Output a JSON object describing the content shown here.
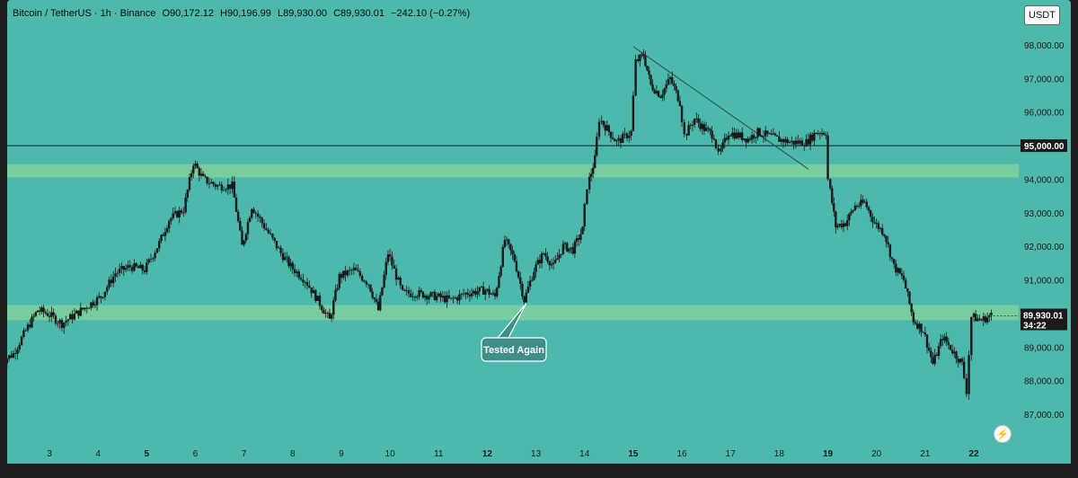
{
  "header": {
    "symbol": "Bitcoin / TetherUS · 1h · Binance",
    "open": "O90,172.12",
    "high": "H90,196.99",
    "low": "L89,930.00",
    "close": "C89,930.01",
    "change": "−242.10 (−0.27%)"
  },
  "currency_button": "USDT",
  "annotation": {
    "text": "Tested Again"
  },
  "price_label": {
    "price": "89,930.01",
    "countdown": "34:22"
  },
  "level_label": "95,000.00",
  "colors": {
    "background": "#4db8ac",
    "candle": "#1a1a1a",
    "zone": "#7fd09a",
    "line": "#1a1a1a"
  },
  "chart_data": {
    "type": "candlestick",
    "ylim": [
      86500,
      98500
    ],
    "y_ticks": [
      "98,000.00",
      "97,000.00",
      "96,000.00",
      "95,000.00",
      "94,000.00",
      "93,000.00",
      "92,000.00",
      "91,000.00",
      "90,000.00",
      "89,000.00",
      "88,000.00",
      "87,000.00"
    ],
    "x_ticks": [
      "3",
      "4",
      "5",
      "6",
      "7",
      "8",
      "9",
      "10",
      "11",
      "12",
      "13",
      "14",
      "15",
      "16",
      "17",
      "18",
      "19",
      "20",
      "21",
      "22"
    ],
    "x_bold": [
      "5",
      "12",
      "15",
      "19",
      "22"
    ],
    "horizontal_line": 95000,
    "support_zones": [
      [
        94050,
        94450
      ],
      [
        89800,
        90250
      ]
    ],
    "trendline": [
      [
        15.0,
        97950
      ],
      [
        18.6,
        94300
      ]
    ],
    "price_path": [
      [
        2.0,
        88500
      ],
      [
        2.3,
        88800
      ],
      [
        2.6,
        89600
      ],
      [
        2.8,
        90100
      ],
      [
        3.0,
        90000
      ],
      [
        3.3,
        89700
      ],
      [
        3.6,
        90000
      ],
      [
        3.9,
        90300
      ],
      [
        4.1,
        90500
      ],
      [
        4.4,
        91200
      ],
      [
        4.7,
        91400
      ],
      [
        5.0,
        91300
      ],
      [
        5.3,
        92100
      ],
      [
        5.5,
        92800
      ],
      [
        5.8,
        93100
      ],
      [
        6.0,
        94500
      ],
      [
        6.2,
        94000
      ],
      [
        6.5,
        93800
      ],
      [
        6.8,
        93800
      ],
      [
        7.0,
        92000
      ],
      [
        7.2,
        93200
      ],
      [
        7.5,
        92500
      ],
      [
        7.8,
        91800
      ],
      [
        8.0,
        91400
      ],
      [
        8.3,
        91000
      ],
      [
        8.6,
        90300
      ],
      [
        8.8,
        89800
      ],
      [
        9.0,
        91100
      ],
      [
        9.3,
        91300
      ],
      [
        9.6,
        90900
      ],
      [
        9.8,
        90100
      ],
      [
        10.0,
        91800
      ],
      [
        10.3,
        90600
      ],
      [
        10.6,
        90600
      ],
      [
        11.0,
        90500
      ],
      [
        11.3,
        90400
      ],
      [
        11.6,
        90600
      ],
      [
        12.0,
        90700
      ],
      [
        12.2,
        90500
      ],
      [
        12.4,
        92200
      ],
      [
        12.6,
        91600
      ],
      [
        12.8,
        90400
      ],
      [
        13.0,
        91300
      ],
      [
        13.2,
        91800
      ],
      [
        13.4,
        91400
      ],
      [
        13.6,
        92000
      ],
      [
        13.8,
        91900
      ],
      [
        14.0,
        92500
      ],
      [
        14.1,
        93800
      ],
      [
        14.25,
        94600
      ],
      [
        14.35,
        95800
      ],
      [
        14.5,
        95500
      ],
      [
        14.7,
        95100
      ],
      [
        15.0,
        95400
      ],
      [
        15.1,
        97500
      ],
      [
        15.25,
        97700
      ],
      [
        15.4,
        96800
      ],
      [
        15.6,
        96500
      ],
      [
        15.8,
        97000
      ],
      [
        16.0,
        96300
      ],
      [
        16.1,
        95300
      ],
      [
        16.3,
        95800
      ],
      [
        16.5,
        95500
      ],
      [
        16.7,
        95300
      ],
      [
        16.8,
        94700
      ],
      [
        17.0,
        95400
      ],
      [
        17.2,
        95300
      ],
      [
        17.4,
        95200
      ],
      [
        17.6,
        95400
      ],
      [
        17.8,
        95300
      ],
      [
        18.0,
        95200
      ],
      [
        18.3,
        95100
      ],
      [
        18.6,
        95100
      ],
      [
        18.8,
        95400
      ],
      [
        19.0,
        95400
      ],
      [
        19.05,
        94000
      ],
      [
        19.2,
        92600
      ],
      [
        19.4,
        92700
      ],
      [
        19.6,
        93200
      ],
      [
        19.8,
        93300
      ],
      [
        20.0,
        92700
      ],
      [
        20.2,
        92400
      ],
      [
        20.4,
        91400
      ],
      [
        20.6,
        91000
      ],
      [
        20.8,
        89800
      ],
      [
        21.0,
        89500
      ],
      [
        21.2,
        88500
      ],
      [
        21.4,
        89300
      ],
      [
        21.6,
        88900
      ],
      [
        21.8,
        88500
      ],
      [
        21.9,
        87700
      ],
      [
        22.0,
        89900
      ],
      [
        22.2,
        89800
      ],
      [
        22.4,
        89950
      ]
    ]
  }
}
